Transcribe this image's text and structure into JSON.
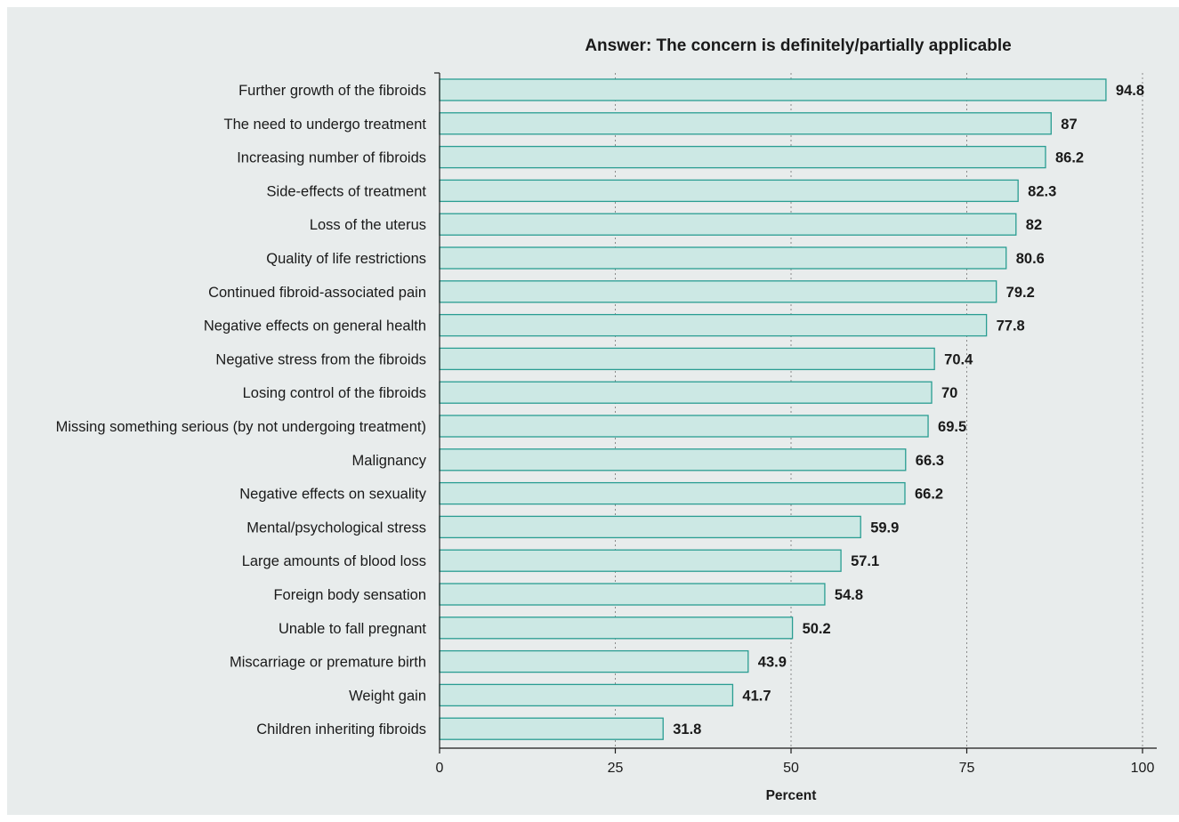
{
  "chart_data": {
    "type": "bar",
    "orientation": "horizontal",
    "title": "Answer: The concern is definitely/partially applicable",
    "xlabel": "Percent",
    "ylabel": "",
    "xlim": [
      0,
      100
    ],
    "x_ticks": [
      0,
      25,
      50,
      75,
      100
    ],
    "grid": "vertical dashed",
    "categories": [
      "Further growth of the fibroids",
      "The need to undergo treatment",
      "Increasing number of fibroids",
      "Side-effects of treatment",
      "Loss of the uterus",
      "Quality of life restrictions",
      "Continued fibroid-associated pain",
      "Negative effects on general health",
      "Negative stress from the fibroids",
      "Losing control of the fibroids",
      "Missing something serious (by not undergoing treatment)",
      "Malignancy",
      "Negative effects on sexuality",
      "Mental/psychological stress",
      "Large amounts of blood loss",
      "Foreign body sensation",
      "Unable to fall pregnant",
      "Miscarriage or premature birth",
      "Weight gain",
      "Children inheriting fibroids"
    ],
    "values": [
      94.8,
      87,
      86.2,
      82.3,
      82,
      80.6,
      79.2,
      77.8,
      70.4,
      70,
      69.5,
      66.3,
      66.2,
      59.9,
      57.1,
      54.8,
      50.2,
      43.9,
      41.7,
      31.8
    ],
    "colors": {
      "bar_fill": "#cce8e4",
      "bar_stroke": "#2a9d92",
      "background": "#e8ecec"
    }
  }
}
